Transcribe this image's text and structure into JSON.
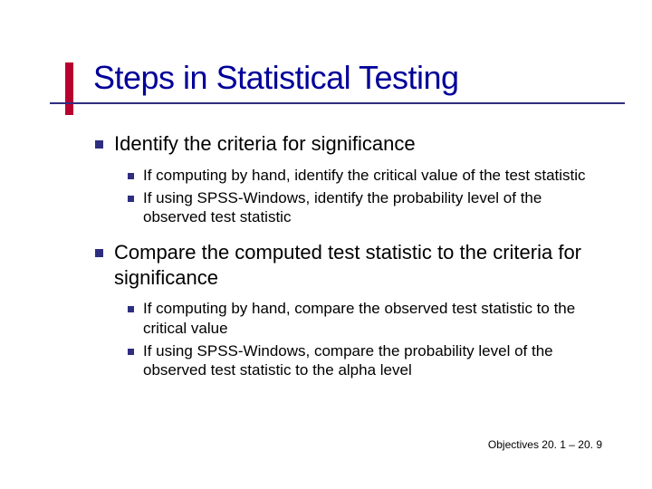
{
  "colors": {
    "title": "#000099",
    "underline": "#2e2e80",
    "accent": "#b8012f",
    "bullet": "#2e2e80",
    "text": "#000000",
    "background": "#ffffff"
  },
  "typography": {
    "font_family": "Verdana",
    "title_fontsize": 36,
    "lvl1_fontsize": 22,
    "lvl2_fontsize": 17,
    "footer_fontsize": 12
  },
  "title": "Steps in Statistical Testing",
  "bullets": [
    {
      "text": "Identify the criteria for significance",
      "sub": [
        "If computing by hand, identify the critical value of the test statistic",
        "If using SPSS-Windows, identify the probability level of the observed test statistic"
      ]
    },
    {
      "text": "Compare the computed test statistic to the criteria for significance",
      "sub": [
        "If computing by hand, compare the observed test statistic to the critical value",
        "If using SPSS-Windows, compare the probability level of the observed test statistic to the alpha level"
      ]
    }
  ],
  "footer": "Objectives 20. 1 – 20. 9"
}
